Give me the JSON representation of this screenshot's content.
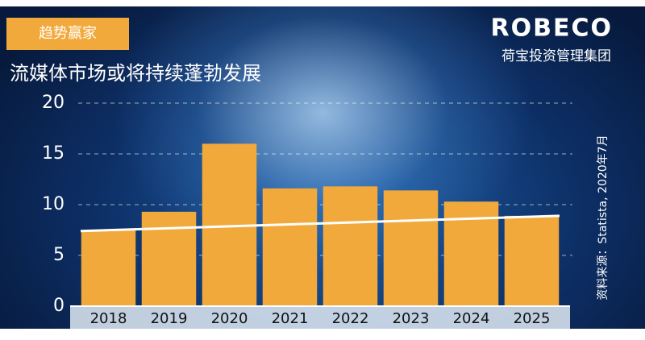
{
  "chart_data": {
    "type": "bar",
    "tag": "趋势赢家",
    "title": "流媒体市场或将持续蓬勃发展",
    "brand": "ROBECO",
    "brand_subtitle": "荷宝投资管理集团",
    "source": "资料来源：Statista, 2020年7月",
    "categories": [
      "2018",
      "2019",
      "2020",
      "2021",
      "2022",
      "2023",
      "2024",
      "2025"
    ],
    "values": [
      7.5,
      9.3,
      16.0,
      11.6,
      11.8,
      11.4,
      10.3,
      8.9
    ],
    "color": "#f2a93b",
    "trend_line": {
      "start": 7.4,
      "end": 8.9,
      "color": "#ffffff"
    },
    "ylim": [
      0,
      20
    ],
    "yticks": [
      0,
      5,
      10,
      15,
      20
    ],
    "grid": true
  }
}
